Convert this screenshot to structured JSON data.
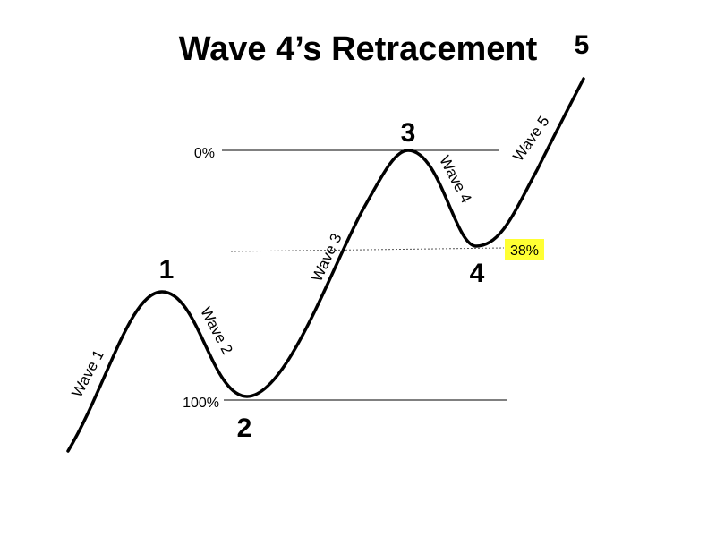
{
  "title": "Wave 4’s Retracement",
  "points": {
    "p1": "1",
    "p2": "2",
    "p3": "3",
    "p4": "4",
    "p5": "5"
  },
  "waves": {
    "w1": "Wave 1",
    "w2": "Wave 2",
    "w3": "Wave 3",
    "w4": "Wave 4",
    "w5": "Wave 5"
  },
  "levels": {
    "top": "0%",
    "bottom": "100%",
    "retracement": "38%"
  },
  "colors": {
    "curve": "#000000",
    "highlight": "#ffff33"
  }
}
